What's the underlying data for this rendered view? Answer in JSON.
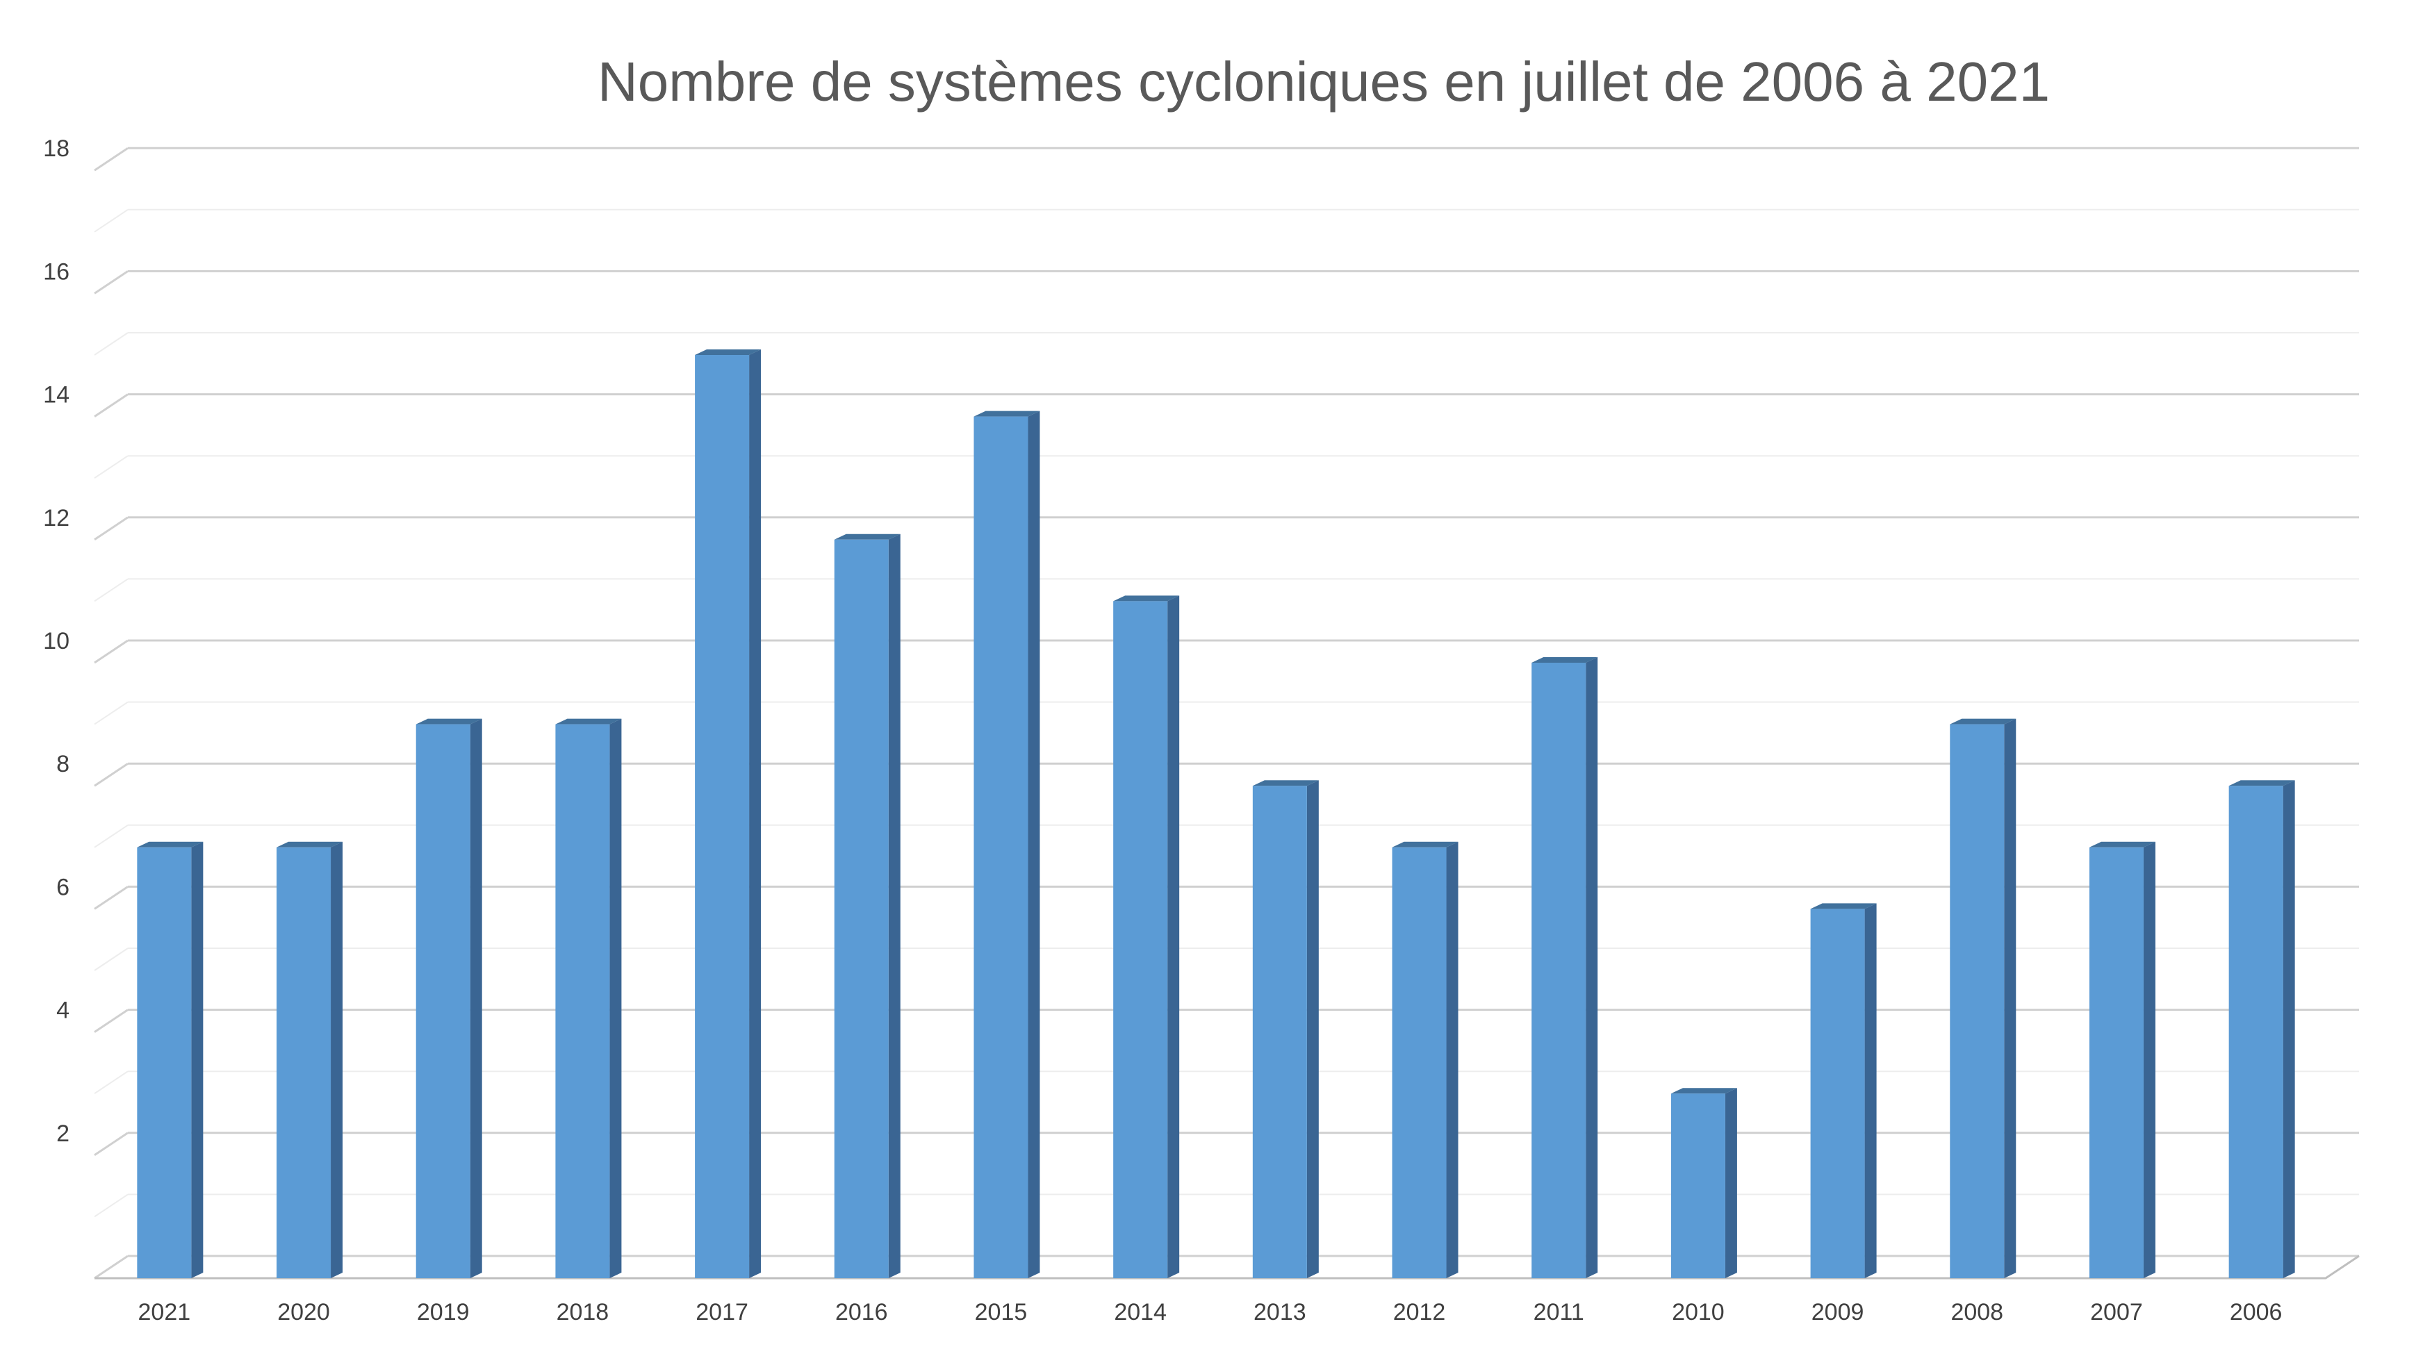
{
  "chart_data": {
    "type": "bar",
    "title": "Nombre de systèmes cycloniques en juillet de 2006 à 2021",
    "xlabel": "",
    "ylabel": "",
    "ylim": [
      0,
      18
    ],
    "y_major_ticks": [
      "2",
      "4",
      "6",
      "8",
      "10",
      "12",
      "14",
      "16",
      "18"
    ],
    "categories": [
      "2021",
      "2020",
      "2019",
      "2018",
      "2017",
      "2016",
      "2015",
      "2014",
      "2013",
      "2012",
      "2011",
      "2010",
      "2009",
      "2008",
      "2007",
      "2006"
    ],
    "values": [
      7,
      7,
      9,
      9,
      15,
      12,
      14,
      11,
      8,
      7,
      10,
      3,
      6,
      9,
      7,
      8
    ],
    "grid": "major and minor horizontal",
    "legend": "none",
    "style": "3d-column",
    "colors": {
      "bar_front": "#5B9BD5",
      "bar_side": "#3A6593",
      "bar_top": "#41719C",
      "grid_major": "#D0D0D0",
      "grid_minor": "#EDEDED",
      "text": "#404040",
      "title": "#595959"
    }
  }
}
